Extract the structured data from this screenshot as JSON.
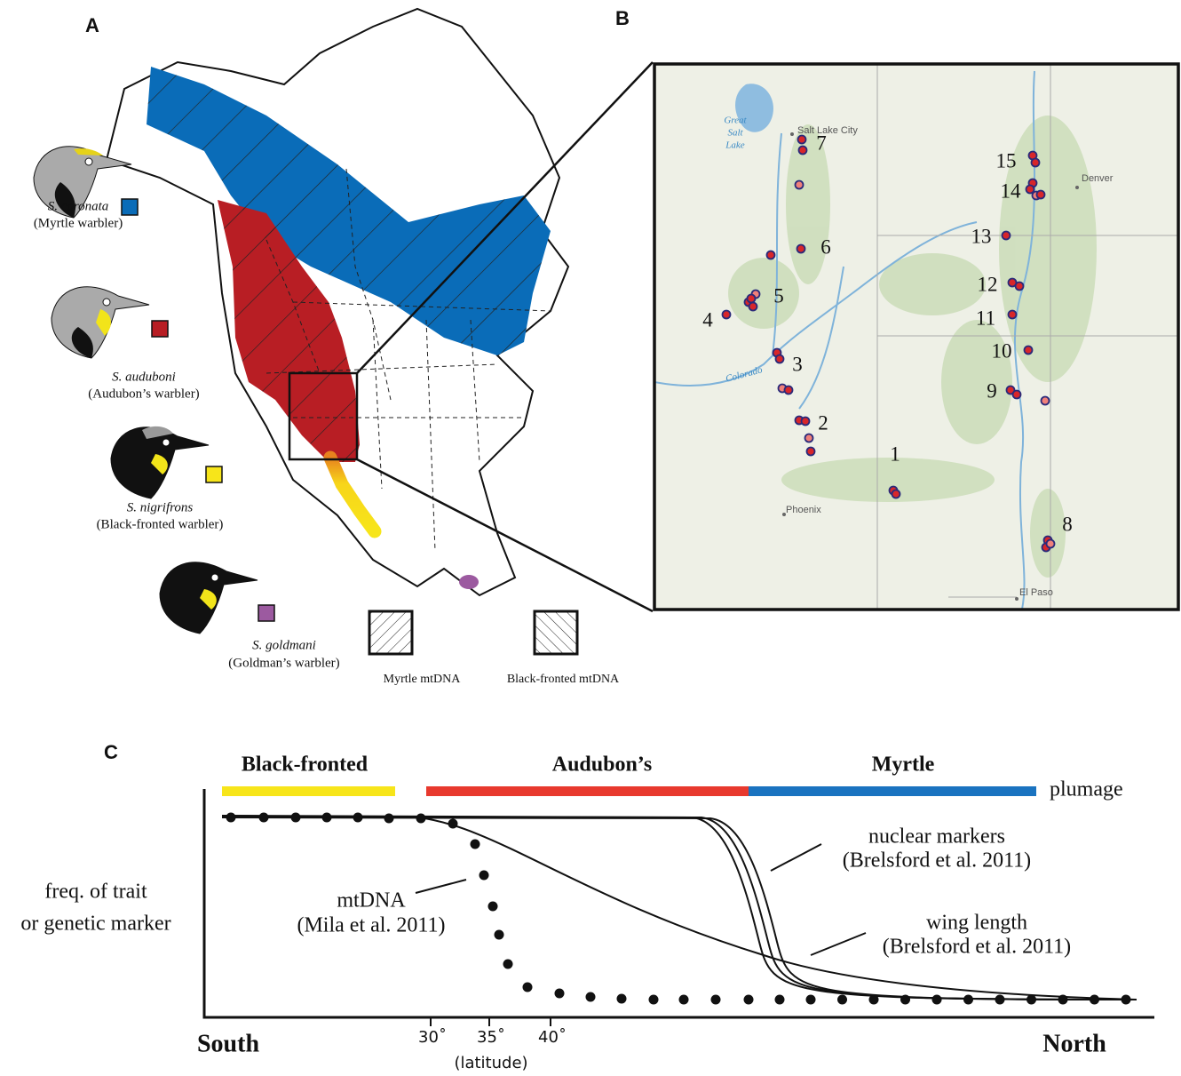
{
  "panel_a": {
    "label": "A",
    "species": [
      {
        "name": "S. coronata",
        "common": "(Myrtle warbler)"
      },
      {
        "name": "S. auduboni",
        "common": "(Audubon’s warbler)"
      },
      {
        "name": "S. nigrifrons",
        "common": "(Black-fronted warbler)"
      },
      {
        "name": "S. goldmani",
        "common": "(Goldman’s warbler)"
      }
    ],
    "legend": [
      "Myrtle mtDNA",
      "Black-fronted mtDNA"
    ]
  },
  "panel_b": {
    "label": "B",
    "lake": [
      "Great",
      "Salt",
      "Lake"
    ],
    "cities": [
      "Salt Lake City",
      "Denver",
      "Phoenix",
      "El Paso"
    ],
    "river": "Colorado",
    "sites": [
      "1",
      "2",
      "3",
      "4",
      "5",
      "6",
      "7",
      "8",
      "9",
      "10",
      "11",
      "12",
      "13",
      "14",
      "15"
    ]
  },
  "panel_c": {
    "label": "C",
    "plumage_groups": [
      "Black-fronted",
      "Audubon’s",
      "Myrtle"
    ],
    "plumage_label": "plumage",
    "y_label": [
      "freq. of trait",
      "or genetic marker"
    ],
    "annotations": [
      {
        "name": "nuclear markers",
        "source": "(Brelsford et al. 2011)"
      },
      {
        "name": "mtDNA",
        "source": "(Mila et al. 2011)"
      },
      {
        "name": "wing length",
        "source": "(Brelsford et al. 2011)"
      }
    ],
    "x_left": "South",
    "x_right": "North",
    "latitude_ticks": [
      "30˚",
      "35˚",
      "40˚"
    ],
    "latitude_label": "(latitude)"
  }
}
